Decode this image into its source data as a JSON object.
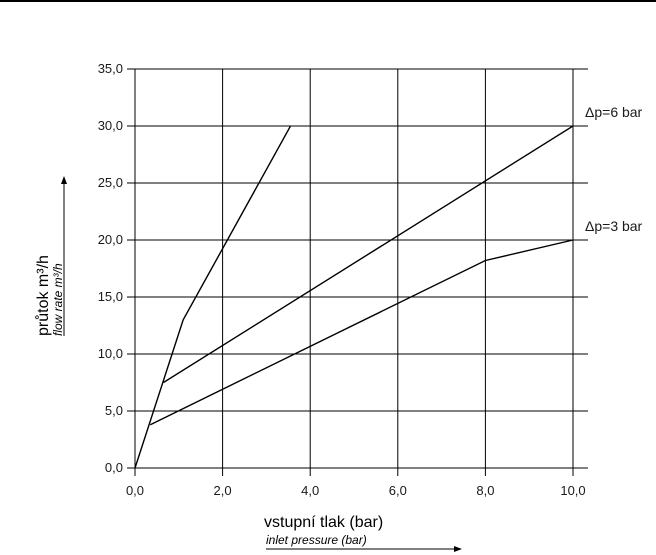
{
  "chart_data": {
    "type": "line",
    "title": "",
    "xlabel": "vstupní tlak (bar)",
    "xlabel_sub": "inlet pressure (bar)",
    "ylabel": "průtok m³/h",
    "ylabel_sub": "flow rate m³/h",
    "xlim": [
      0,
      10
    ],
    "ylim": [
      0,
      35
    ],
    "grid": true,
    "x_ticks": [
      "0,0",
      "2,0",
      "4,0",
      "6,0",
      "8,0",
      "10,0"
    ],
    "y_ticks": [
      "0,0",
      "5,0",
      "10,0",
      "15,0",
      "20,0",
      "25,0",
      "30,0",
      "35,0"
    ],
    "colors": {
      "line": "#000000",
      "grid": "#000000"
    },
    "series": [
      {
        "points": [
          [
            0.0,
            0.0
          ],
          [
            1.1,
            13.0
          ],
          [
            3.55,
            30.0
          ]
        ]
      },
      {
        "name": "Δp=6 bar",
        "points": [
          [
            0.65,
            7.5
          ],
          [
            10.0,
            30.0
          ]
        ]
      },
      {
        "name": "Δp=3 bar",
        "points": [
          [
            0.35,
            3.8
          ],
          [
            8.0,
            18.2
          ],
          [
            10.0,
            20.0
          ]
        ]
      }
    ]
  }
}
